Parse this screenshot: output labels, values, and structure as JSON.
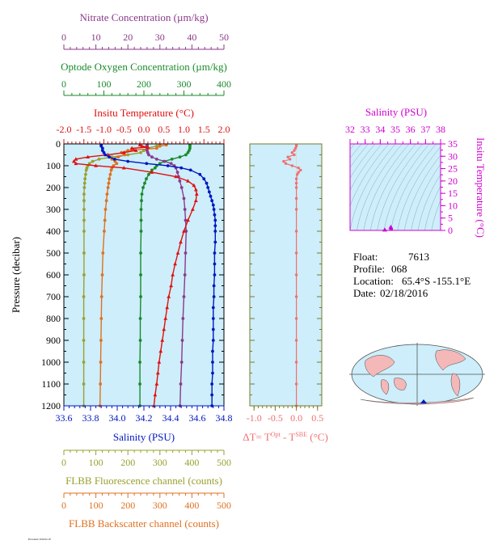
{
  "colors": {
    "nitrate": "#8a3a8a",
    "oxygen": "#1a8a2a",
    "temperature": "#e01010",
    "salinity": "#0018c0",
    "fluorescence": "#9aa030",
    "backscatter": "#e07020",
    "delta_t": "#f07070",
    "ts_axis": "#d000d0",
    "panel_bg": "#cdeefa",
    "land": "#f4b8b8",
    "ocean": "#cdeefa"
  },
  "icons": {
    "world_map": "world-map-icon",
    "float_marker": "float-location-marker"
  },
  "meta": {
    "float_label": "Float:",
    "float_value": "7613",
    "profile_label": "Profile:",
    "profile_value": "068",
    "location_label": "Location:",
    "location_value": "65.4°S  -155.1°E",
    "date_label": "Date:",
    "date_value": "02/18/2016",
    "footer": "Processed: 2016-02-18"
  },
  "chart_data": [
    {
      "type": "line",
      "panel": "profiles",
      "ylabel": "Pressure (decibar)",
      "ylim": [
        1200,
        0
      ],
      "yticks": [
        0,
        100,
        200,
        300,
        400,
        500,
        600,
        700,
        800,
        900,
        1000,
        1100,
        1200
      ],
      "axes": {
        "nitrate": {
          "title": "Nitrate Concentration (µm/kg)",
          "range": [
            0,
            50
          ],
          "ticks": [
            0,
            10,
            20,
            30,
            40,
            50
          ]
        },
        "oxygen": {
          "title": "Optode Oxygen Concentration (µm/kg)",
          "range": [
            0,
            400
          ],
          "ticks": [
            0,
            100,
            200,
            300,
            400
          ]
        },
        "temperature": {
          "title": "Insitu Temperature (°C)",
          "range": [
            -2.0,
            2.0
          ],
          "ticks": [
            "-2.0",
            "-1.5",
            "-1.0",
            "-0.5",
            "0.0",
            "0.5",
            "1.0",
            "1.5",
            "2.0"
          ]
        },
        "salinity": {
          "title": "Salinity (PSU)",
          "range": [
            33.6,
            34.8
          ],
          "ticks": [
            "33.6",
            "33.8",
            "34.0",
            "34.2",
            "34.4",
            "34.6",
            "34.8"
          ]
        },
        "fluorescence": {
          "title": "FLBB Fluorescence channel (counts)",
          "range": [
            0,
            500
          ],
          "ticks": [
            0,
            100,
            200,
            300,
            400,
            500
          ]
        },
        "backscatter": {
          "title": "FLBB Backscatter channel (counts)",
          "range": [
            0,
            500
          ],
          "ticks": [
            0,
            100,
            200,
            300,
            400,
            500
          ]
        }
      },
      "series": [
        {
          "key": "salinity",
          "axis": "salinity",
          "p": [
            5,
            10,
            20,
            30,
            40,
            50,
            60,
            70,
            80,
            90,
            100,
            110,
            120,
            140,
            160,
            180,
            200,
            220,
            240,
            260,
            280,
            300,
            325,
            350,
            375,
            400,
            450,
            500,
            550,
            600,
            650,
            700,
            750,
            800,
            850,
            900,
            950,
            1000,
            1050,
            1100,
            1150,
            1200
          ],
          "v": [
            33.88,
            33.88,
            33.89,
            33.89,
            33.9,
            33.91,
            33.94,
            33.98,
            34.08,
            34.22,
            34.38,
            34.48,
            34.55,
            34.62,
            34.65,
            34.67,
            34.68,
            34.69,
            34.7,
            34.71,
            34.72,
            34.725,
            34.73,
            34.735,
            34.735,
            34.735,
            34.735,
            34.73,
            34.73,
            34.73,
            34.725,
            34.725,
            34.72,
            34.72,
            34.72,
            34.72,
            34.715,
            34.715,
            34.715,
            34.71,
            34.71,
            34.71
          ]
        },
        {
          "key": "temperature",
          "axis": "temperature",
          "p": [
            5,
            10,
            15,
            20,
            30,
            40,
            50,
            60,
            70,
            80,
            90,
            100,
            110,
            130,
            150,
            170,
            190,
            210,
            230,
            260,
            300,
            350,
            400,
            450,
            500,
            550,
            600,
            650,
            700,
            750,
            800,
            850,
            900,
            950,
            1000,
            1050,
            1100,
            1150,
            1200
          ],
          "v": [
            -0.1,
            -0.05,
            0.1,
            -0.3,
            -0.2,
            -0.5,
            -0.9,
            -1.4,
            -1.7,
            -1.75,
            -1.7,
            -1.2,
            -0.5,
            0.2,
            0.8,
            1.1,
            1.25,
            1.3,
            1.32,
            1.3,
            1.22,
            1.1,
            1.0,
            0.92,
            0.85,
            0.78,
            0.72,
            0.68,
            0.62,
            0.58,
            0.54,
            0.5,
            0.46,
            0.42,
            0.38,
            0.35,
            0.32,
            0.28,
            0.25
          ]
        },
        {
          "key": "nitrate",
          "axis": "nitrate",
          "p": [
            5,
            10,
            20,
            30,
            40,
            50,
            60,
            70,
            80,
            90,
            100,
            110,
            130,
            150,
            170,
            200,
            250,
            300,
            350,
            400,
            500,
            600,
            700,
            800,
            900,
            1000,
            1100,
            1200
          ],
          "v": [
            26.0,
            26.0,
            26.0,
            26.0,
            26.2,
            26.5,
            27.5,
            29.0,
            31.5,
            33.5,
            34.5,
            35.0,
            35.5,
            35.8,
            36.2,
            36.8,
            37.5,
            37.8,
            38.0,
            38.2,
            38.0,
            37.8,
            37.5,
            37.2,
            37.0,
            36.8,
            36.5,
            36.3
          ]
        },
        {
          "key": "oxygen",
          "axis": "oxygen",
          "p": [
            5,
            10,
            20,
            30,
            40,
            50,
            60,
            70,
            80,
            90,
            100,
            110,
            120,
            140,
            160,
            180,
            200,
            230,
            260,
            300,
            350,
            400,
            500,
            600,
            700,
            800,
            900,
            1000,
            1100,
            1200
          ],
          "v": [
            315,
            315,
            315,
            313,
            310,
            305,
            290,
            270,
            250,
            240,
            232,
            228,
            220,
            212,
            206,
            202,
            198,
            195,
            194,
            193,
            193,
            193,
            192,
            192,
            192,
            191,
            191,
            190,
            190,
            190
          ]
        },
        {
          "key": "fluorescence",
          "axis": "fluorescence",
          "p": [
            5,
            10,
            20,
            30,
            40,
            50,
            60,
            70,
            80,
            90,
            100,
            110,
            120,
            140,
            160,
            180,
            200,
            230,
            260,
            300,
            350,
            400,
            500,
            600,
            700,
            800,
            900,
            1000,
            1100,
            1200
          ],
          "v": [
            300,
            290,
            260,
            250,
            240,
            200,
            150,
            110,
            90,
            80,
            75,
            72,
            70,
            68,
            66,
            65,
            64,
            63,
            63,
            63,
            63,
            63,
            63,
            63,
            62,
            62,
            62,
            62,
            62,
            62
          ]
        },
        {
          "key": "backscatter",
          "axis": "backscatter",
          "p": [
            5,
            10,
            20,
            30,
            40,
            50,
            60,
            70,
            80,
            90,
            100,
            110,
            120,
            140,
            160,
            180,
            200,
            230,
            260,
            300,
            350,
            400,
            500,
            600,
            700,
            800,
            900,
            1000,
            1100,
            1200
          ],
          "v": [
            320,
            300,
            290,
            200,
            180,
            190,
            170,
            150,
            160,
            165,
            155,
            150,
            148,
            145,
            142,
            140,
            138,
            135,
            133,
            130,
            128,
            126,
            122,
            120,
            118,
            117,
            116,
            115,
            114,
            113
          ]
        }
      ]
    },
    {
      "type": "line",
      "panel": "delta-t",
      "xlabel_main": "ΔT= T",
      "xlabel_sup1": "Opt",
      "xlabel_mid": " - T",
      "xlabel_sup2": "SBE",
      "xlabel_unit": " (°C)",
      "xlim": [
        -1.1,
        0.6
      ],
      "xticks": [
        "-1.0",
        "-0.5",
        "0.0",
        "0.5"
      ],
      "ylim": [
        1200,
        0
      ],
      "series": [
        {
          "name": "",
          "p": [
            5,
            10,
            20,
            30,
            40,
            50,
            60,
            70,
            80,
            90,
            100,
            110,
            120,
            130,
            140,
            160,
            180,
            200,
            250,
            300,
            400,
            500,
            600,
            700,
            800,
            900,
            1000,
            1100,
            1200
          ],
          "v": [
            0.0,
            0.0,
            -0.02,
            -0.05,
            -0.1,
            -0.05,
            -0.2,
            -0.15,
            -0.3,
            -0.25,
            -0.1,
            0.05,
            0.1,
            0.05,
            0.02,
            0.0,
            0.0,
            0.0,
            0.0,
            0.0,
            0.0,
            0.0,
            0.0,
            0.0,
            0.0,
            0.0,
            0.0,
            0.0,
            0.0
          ]
        }
      ]
    },
    {
      "type": "scatter",
      "panel": "ts-diagram",
      "xlabel": "Salinity (PSU)",
      "ylabel": "Insitu Temperature (°C)",
      "xlim": [
        32,
        38
      ],
      "ylim": [
        0,
        35
      ],
      "xticks": [
        "32",
        "33",
        "34",
        "35",
        "36",
        "37",
        "38"
      ],
      "yticks": [
        "0",
        "5",
        "10",
        "15",
        "20",
        "25",
        "30",
        "35"
      ],
      "points": [
        {
          "x": 34.7,
          "y": 1.3
        },
        {
          "x": 34.72,
          "y": 0.6
        },
        {
          "x": 34.3,
          "y": 0.2
        }
      ]
    }
  ]
}
